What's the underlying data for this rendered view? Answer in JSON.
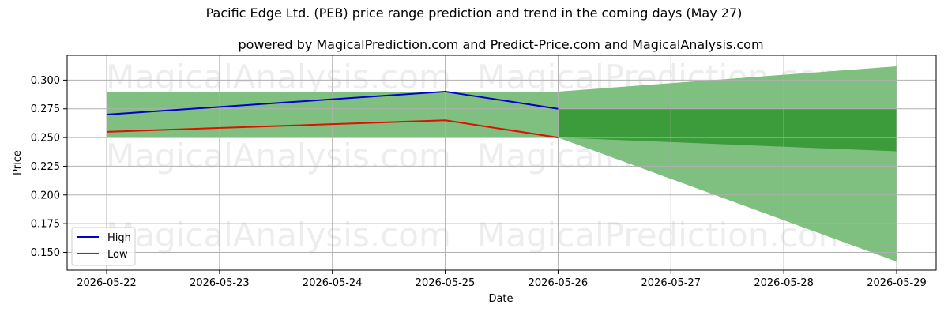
{
  "chart_data": {
    "type": "line",
    "title": "Pacific Edge Ltd. (PEB) price range prediction and trend in the coming days (May 27)",
    "subtitle": "powered by MagicalPrediction.com and Predict-Price.com and MagicalAnalysis.com",
    "xlabel": "Date",
    "ylabel": "Price",
    "x_ticks": [
      "2026-05-22",
      "2026-05-23",
      "2026-05-24",
      "2026-05-25",
      "2026-05-26",
      "2026-05-27",
      "2026-05-28",
      "2026-05-29"
    ],
    "y_ticks": [
      "0.300",
      "0.275",
      "0.250",
      "0.225",
      "0.200",
      "0.175",
      "0.150"
    ],
    "xlim": [
      "2026-05-21.65",
      "2026-05-29.35"
    ],
    "ylim": [
      0.1345,
      0.3216
    ],
    "grid": true,
    "legend_position": "lower-left",
    "series": [
      {
        "name": "High",
        "color": "#0000cc",
        "x": [
          "2026-05-22",
          "2026-05-25",
          "2026-05-26"
        ],
        "values": [
          0.27,
          0.29,
          0.275
        ]
      },
      {
        "name": "Low",
        "color": "#dd1100",
        "x": [
          "2026-05-22",
          "2026-05-25",
          "2026-05-26"
        ],
        "values": [
          0.255,
          0.265,
          0.25
        ]
      }
    ],
    "bands": [
      {
        "kind": "historical-range",
        "color": "#7fbf7f",
        "x": [
          "2026-05-22",
          "2026-05-26"
        ],
        "upper": [
          0.29,
          0.29
        ],
        "lower": [
          0.25,
          0.25
        ]
      },
      {
        "kind": "prediction-range",
        "color": "#7fbf7f",
        "x": [
          "2026-05-26",
          "2026-05-29"
        ],
        "upper": [
          0.29,
          0.312
        ],
        "lower": [
          0.25,
          0.142
        ]
      },
      {
        "kind": "prediction-core",
        "color": "#3c9c3c",
        "x": [
          "2026-05-26",
          "2026-05-29"
        ],
        "upper": [
          0.275,
          0.275
        ],
        "lower": [
          0.25,
          0.238
        ]
      }
    ],
    "watermarks": [
      "MagicalAnalysis.com",
      "MagicalPrediction.com"
    ]
  }
}
